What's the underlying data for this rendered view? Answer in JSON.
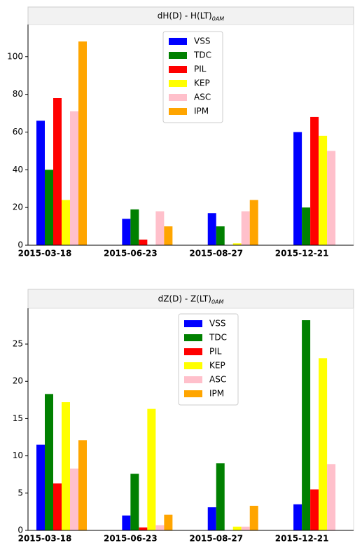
{
  "chart_data": [
    {
      "type": "bar",
      "title": "dH(D) - H(LT)",
      "title_subscript": "0AM",
      "categories": [
        "2015-03-18",
        "2015-06-23",
        "2015-08-27",
        "2015-12-21"
      ],
      "series": [
        {
          "name": "VSS",
          "color": "#0000ff",
          "values": [
            66,
            14,
            17,
            60
          ]
        },
        {
          "name": "TDC",
          "color": "#008000",
          "values": [
            40,
            19,
            10,
            20
          ]
        },
        {
          "name": "PIL",
          "color": "#ff0000",
          "values": [
            78,
            3,
            0,
            68
          ]
        },
        {
          "name": "KEP",
          "color": "#ffff00",
          "values": [
            24,
            0,
            1,
            58
          ]
        },
        {
          "name": "ASC",
          "color": "#ffc0cb",
          "values": [
            71,
            18,
            18,
            50
          ]
        },
        {
          "name": "IPM",
          "color": "#ffa500",
          "values": [
            108,
            10,
            24,
            0
          ]
        }
      ],
      "ylim": [
        0,
        117
      ],
      "yticks": [
        0,
        20,
        40,
        60,
        80,
        100
      ],
      "legend": "upper center"
    },
    {
      "type": "bar",
      "title": "dZ(D) - Z(LT)",
      "title_subscript": "0AM",
      "categories": [
        "2015-03-18",
        "2015-06-23",
        "2015-08-27",
        "2015-12-21"
      ],
      "series": [
        {
          "name": "VSS",
          "color": "#0000ff",
          "values": [
            11.5,
            2,
            3.1,
            3.5
          ]
        },
        {
          "name": "TDC",
          "color": "#008000",
          "values": [
            18.3,
            7.6,
            9,
            28.2
          ]
        },
        {
          "name": "PIL",
          "color": "#ff0000",
          "values": [
            6.3,
            0.4,
            0,
            5.5
          ]
        },
        {
          "name": "KEP",
          "color": "#ffff00",
          "values": [
            17.2,
            16.3,
            0.5,
            23.1
          ]
        },
        {
          "name": "ASC",
          "color": "#ffc0cb",
          "values": [
            8.3,
            0.7,
            0.5,
            8.9
          ]
        },
        {
          "name": "IPM",
          "color": "#ffa500",
          "values": [
            12.1,
            2.1,
            3.3,
            0
          ]
        }
      ],
      "ylim": [
        0,
        29.8
      ],
      "yticks": [
        0,
        5,
        10,
        15,
        20,
        25
      ],
      "legend": "upper center"
    }
  ]
}
